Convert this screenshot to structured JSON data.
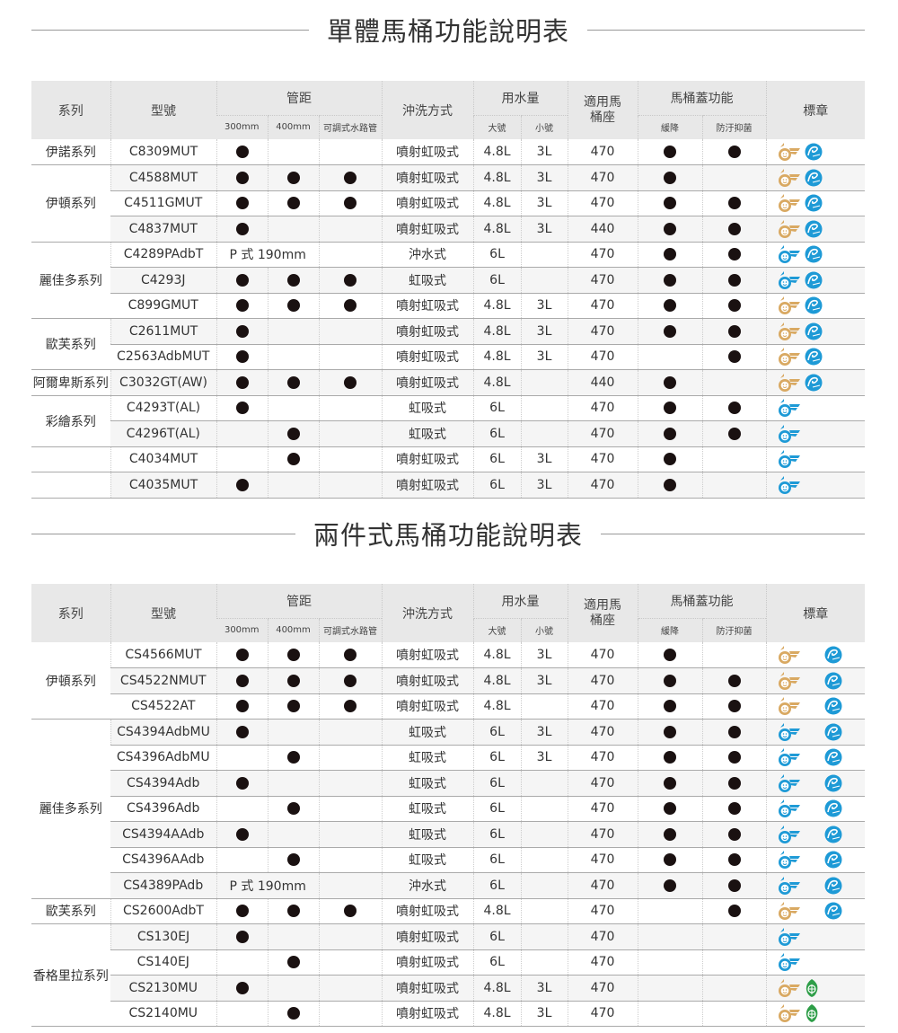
{
  "colors": {
    "gold": "#d9a962",
    "blue": "#1e9ad6",
    "green": "#2e9e48",
    "dot": "#1a1111",
    "header_bg": "#e8e8e8",
    "alt_row": "#f5f5f5"
  },
  "headers": {
    "series": "系列",
    "model": "型號",
    "pipe": "管距",
    "p300": "300mm",
    "p400": "400mm",
    "adj": "可調式水路管",
    "flush": "沖洗方式",
    "water": "用水量",
    "big": "大號",
    "small": "小號",
    "seat": "適用馬桶座",
    "lid": "馬桶蓋功能",
    "slow": "緩降",
    "anti": "防汙抑菌",
    "badge": "標章"
  },
  "tables": [
    {
      "title": "單體馬桶功能說明表",
      "groups": [
        {
          "series": "伊諾系列",
          "rows": [
            {
              "model": "C8309MUT",
              "p300": true,
              "p400": false,
              "adj": false,
              "flush": "噴射虹吸式",
              "big": "4.8L",
              "small": "3L",
              "seat": "470",
              "slow": true,
              "anti": true,
              "badges": [
                "water-gold",
                "eco-blue"
              ]
            }
          ]
        },
        {
          "series": "伊頓系列",
          "rows": [
            {
              "model": "C4588MUT",
              "p300": true,
              "p400": true,
              "adj": true,
              "flush": "噴射虹吸式",
              "big": "4.8L",
              "small": "3L",
              "seat": "470",
              "slow": true,
              "anti": false,
              "badges": [
                "water-gold",
                "eco-blue"
              ]
            },
            {
              "model": "C4511GMUT",
              "p300": true,
              "p400": true,
              "adj": true,
              "flush": "噴射虹吸式",
              "big": "4.8L",
              "small": "3L",
              "seat": "470",
              "slow": true,
              "anti": true,
              "badges": [
                "water-gold",
                "eco-blue"
              ]
            },
            {
              "model": "C4837MUT",
              "p300": true,
              "p400": false,
              "adj": false,
              "flush": "噴射虹吸式",
              "big": "4.8L",
              "small": "3L",
              "seat": "440",
              "slow": true,
              "anti": true,
              "badges": [
                "water-gold",
                "eco-blue"
              ]
            }
          ]
        },
        {
          "series": "麗佳多系列",
          "rows": [
            {
              "model": "C4289PAdbT",
              "pipe_text": "P 式 190mm",
              "flush": "沖水式",
              "big": "6L",
              "small": "",
              "seat": "470",
              "slow": true,
              "anti": true,
              "badges": [
                "water-blue",
                "eco-blue"
              ]
            },
            {
              "model": "C4293J",
              "p300": true,
              "p400": true,
              "adj": true,
              "flush": "虹吸式",
              "big": "6L",
              "small": "",
              "seat": "470",
              "slow": true,
              "anti": true,
              "badges": [
                "water-blue",
                "eco-blue"
              ]
            },
            {
              "model": "C899GMUT",
              "p300": true,
              "p400": true,
              "adj": true,
              "flush": "噴射虹吸式",
              "big": "4.8L",
              "small": "3L",
              "seat": "470",
              "slow": true,
              "anti": true,
              "badges": [
                "water-gold",
                "eco-blue"
              ]
            }
          ]
        },
        {
          "series": "歐芙系列",
          "rows": [
            {
              "model": "C2611MUT",
              "p300": true,
              "p400": false,
              "adj": false,
              "flush": "噴射虹吸式",
              "big": "4.8L",
              "small": "3L",
              "seat": "470",
              "slow": true,
              "anti": true,
              "badges": [
                "water-gold",
                "eco-blue"
              ]
            },
            {
              "model": "C2563AdbMUT",
              "p300": true,
              "p400": false,
              "adj": false,
              "flush": "噴射虹吸式",
              "big": "4.8L",
              "small": "3L",
              "seat": "470",
              "slow": false,
              "anti": true,
              "badges": [
                "water-gold",
                "eco-blue"
              ]
            }
          ]
        },
        {
          "series": "阿爾卑斯系列",
          "rows": [
            {
              "model": "C3032GT(AW)",
              "p300": true,
              "p400": true,
              "adj": true,
              "flush": "噴射虹吸式",
              "big": "4.8L",
              "small": "",
              "seat": "440",
              "slow": true,
              "anti": false,
              "badges": [
                "water-gold",
                "eco-blue"
              ]
            }
          ]
        },
        {
          "series": "彩繪系列",
          "rows": [
            {
              "model": "C4293T(AL)",
              "p300": true,
              "p400": false,
              "adj": false,
              "flush": "虹吸式",
              "big": "6L",
              "small": "",
              "seat": "470",
              "slow": true,
              "anti": true,
              "badges": [
                "water-blue"
              ]
            },
            {
              "model": "C4296T(AL)",
              "p300": false,
              "p400": true,
              "adj": false,
              "flush": "虹吸式",
              "big": "6L",
              "small": "",
              "seat": "470",
              "slow": true,
              "anti": true,
              "badges": [
                "water-blue"
              ]
            }
          ]
        },
        {
          "series": "",
          "rows": [
            {
              "model": "C4034MUT",
              "p300": false,
              "p400": true,
              "adj": false,
              "flush": "噴射虹吸式",
              "big": "6L",
              "small": "3L",
              "seat": "470",
              "slow": true,
              "anti": false,
              "badges": [
                "water-blue"
              ]
            }
          ]
        },
        {
          "series": "",
          "rows": [
            {
              "model": "C4035MUT",
              "p300": true,
              "p400": false,
              "adj": false,
              "flush": "噴射虹吸式",
              "big": "6L",
              "small": "3L",
              "seat": "470",
              "slow": true,
              "anti": false,
              "badges": [
                "water-blue"
              ]
            }
          ]
        }
      ]
    },
    {
      "title": "兩件式馬桶功能說明表",
      "groups": [
        {
          "series": "伊頓系列",
          "rows": [
            {
              "model": "CS4566MUT",
              "p300": true,
              "p400": true,
              "adj": true,
              "flush": "噴射虹吸式",
              "big": "4.8L",
              "small": "3L",
              "seat": "470",
              "slow": true,
              "anti": false,
              "badges": [
                "water-gold",
                "eco-blue"
              ]
            },
            {
              "model": "CS4522NMUT",
              "p300": true,
              "p400": true,
              "adj": true,
              "flush": "噴射虹吸式",
              "big": "4.8L",
              "small": "3L",
              "seat": "470",
              "slow": true,
              "anti": true,
              "badges": [
                "water-gold",
                "eco-blue"
              ]
            },
            {
              "model": "CS4522AT",
              "p300": true,
              "p400": true,
              "adj": true,
              "flush": "噴射虹吸式",
              "big": "4.8L",
              "small": "",
              "seat": "470",
              "slow": true,
              "anti": true,
              "badges": [
                "water-gold",
                "eco-blue"
              ]
            }
          ]
        },
        {
          "series": "麗佳多系列",
          "rows": [
            {
              "model": "CS4394AdbMU",
              "p300": true,
              "p400": false,
              "adj": false,
              "flush": "虹吸式",
              "big": "6L",
              "small": "3L",
              "seat": "470",
              "slow": true,
              "anti": true,
              "badges": [
                "water-blue",
                "eco-blue"
              ]
            },
            {
              "model": "CS4396AdbMU",
              "p300": false,
              "p400": true,
              "adj": false,
              "flush": "虹吸式",
              "big": "6L",
              "small": "3L",
              "seat": "470",
              "slow": true,
              "anti": true,
              "badges": [
                "water-blue",
                "eco-blue"
              ]
            },
            {
              "model": "CS4394Adb",
              "p300": true,
              "p400": false,
              "adj": false,
              "flush": "虹吸式",
              "big": "6L",
              "small": "",
              "seat": "470",
              "slow": true,
              "anti": true,
              "badges": [
                "water-blue",
                "eco-blue"
              ]
            },
            {
              "model": "CS4396Adb",
              "p300": false,
              "p400": true,
              "adj": false,
              "flush": "虹吸式",
              "big": "6L",
              "small": "",
              "seat": "470",
              "slow": true,
              "anti": true,
              "badges": [
                "water-blue",
                "eco-blue"
              ]
            },
            {
              "model": "CS4394AAdb",
              "p300": true,
              "p400": false,
              "adj": false,
              "flush": "虹吸式",
              "big": "6L",
              "small": "",
              "seat": "470",
              "slow": true,
              "anti": true,
              "badges": [
                "water-blue",
                "eco-blue"
              ]
            },
            {
              "model": "CS4396AAdb",
              "p300": false,
              "p400": true,
              "adj": false,
              "flush": "虹吸式",
              "big": "6L",
              "small": "",
              "seat": "470",
              "slow": true,
              "anti": true,
              "badges": [
                "water-blue",
                "eco-blue"
              ]
            },
            {
              "model": "CS4389PAdb",
              "pipe_text": "P 式 190mm",
              "flush": "沖水式",
              "big": "6L",
              "small": "",
              "seat": "470",
              "slow": true,
              "anti": true,
              "badges": [
                "water-blue",
                "eco-blue"
              ]
            }
          ]
        },
        {
          "series": "歐芙系列",
          "rows": [
            {
              "model": "CS2600AdbT",
              "p300": true,
              "p400": true,
              "adj": true,
              "flush": "噴射虹吸式",
              "big": "4.8L",
              "small": "",
              "seat": "470",
              "slow": false,
              "anti": true,
              "badges": [
                "water-gold",
                "eco-blue"
              ]
            }
          ]
        },
        {
          "series": "香格里拉系列",
          "rows": [
            {
              "model": "CS130EJ",
              "p300": true,
              "p400": false,
              "adj": false,
              "flush": "噴射虹吸式",
              "big": "6L",
              "small": "",
              "seat": "470",
              "slow": false,
              "anti": false,
              "badges": [
                "water-blue"
              ]
            },
            {
              "model": "CS140EJ",
              "p300": false,
              "p400": true,
              "adj": false,
              "flush": "噴射虹吸式",
              "big": "6L",
              "small": "",
              "seat": "470",
              "slow": false,
              "anti": false,
              "badges": [
                "water-blue"
              ]
            },
            {
              "model": "CS2130MU",
              "p300": true,
              "p400": false,
              "adj": false,
              "flush": "噴射虹吸式",
              "big": "4.8L",
              "small": "3L",
              "seat": "470",
              "slow": false,
              "anti": false,
              "badges": [
                "water-gold",
                "green-leaf"
              ]
            },
            {
              "model": "CS2140MU",
              "p300": false,
              "p400": true,
              "adj": false,
              "flush": "噴射虹吸式",
              "big": "4.8L",
              "small": "3L",
              "seat": "470",
              "slow": false,
              "anti": false,
              "badges": [
                "water-gold",
                "green-leaf"
              ]
            }
          ]
        }
      ]
    }
  ]
}
